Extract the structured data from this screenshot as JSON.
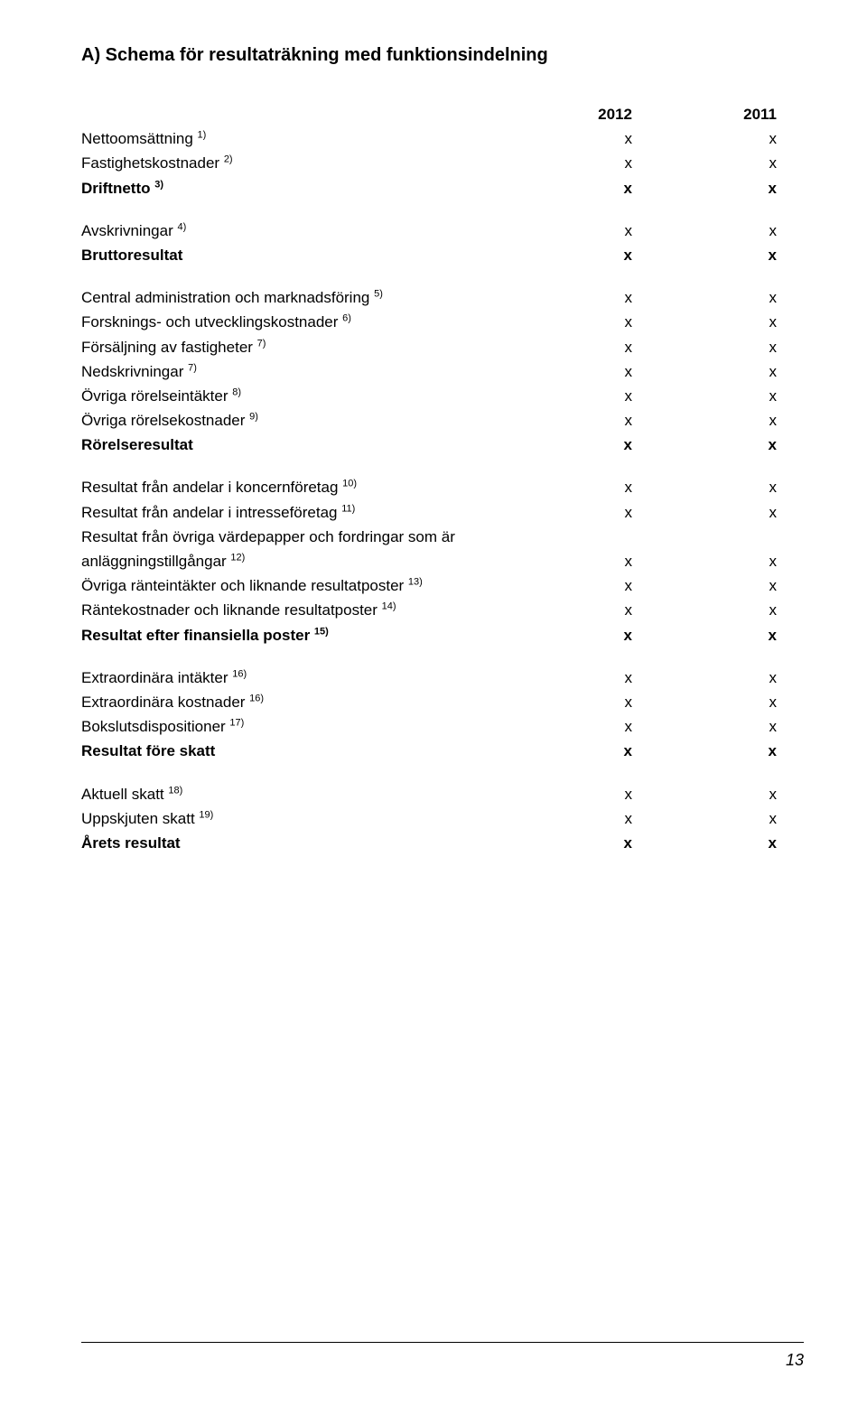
{
  "title": "A) Schema för resultaträkning med funktionsindelning",
  "headers": {
    "col1": "2012",
    "col2": "2011"
  },
  "mark": "x",
  "pageNumber": "13",
  "sections": [
    [
      {
        "label": "Nettoomsättning",
        "sup": "1)",
        "bold": false
      },
      {
        "label": "Fastighetskostnader",
        "sup": "2)",
        "bold": false
      },
      {
        "label": "Driftnetto",
        "sup": "3)",
        "bold": true
      }
    ],
    [
      {
        "label": "Avskrivningar",
        "sup": "4)",
        "bold": false
      },
      {
        "label": "Bruttoresultat",
        "sup": "",
        "bold": true
      }
    ],
    [
      {
        "label": "Central administration och marknadsföring",
        "sup": "5)",
        "bold": false
      },
      {
        "label": "Forsknings- och utvecklingskostnader",
        "sup": "6)",
        "bold": false
      },
      {
        "label": "Försäljning av fastigheter",
        "sup": "7)",
        "bold": false
      },
      {
        "label": "Nedskrivningar",
        "sup": "7)",
        "bold": false
      },
      {
        "label": "Övriga rörelseintäkter",
        "sup": "8)",
        "bold": false
      },
      {
        "label": "Övriga rörelsekostnader",
        "sup": "9)",
        "bold": false
      },
      {
        "label": "Rörelseresultat",
        "sup": "",
        "bold": true
      }
    ],
    [
      {
        "label": "Resultat från andelar i koncernföretag",
        "sup": "10)",
        "bold": false
      },
      {
        "label": "Resultat från andelar i intresseföretag",
        "sup": "11)",
        "bold": false
      },
      {
        "label": "Resultat från övriga värdepapper och fordringar som är",
        "sup": "",
        "bold": false,
        "noMark": true
      },
      {
        "label": "anläggningstillgångar",
        "sup": "12)",
        "bold": false
      },
      {
        "label": "Övriga ränteintäkter och liknande resultatposter",
        "sup": "13)",
        "bold": false
      },
      {
        "label": "Räntekostnader och liknande resultatposter",
        "sup": "14)",
        "bold": false
      },
      {
        "label": "Resultat efter finansiella poster",
        "sup": "15)",
        "bold": true
      }
    ],
    [
      {
        "label": "Extraordinära intäkter",
        "sup": "16)",
        "bold": false
      },
      {
        "label": "Extraordinära kostnader",
        "sup": "16)",
        "bold": false
      },
      {
        "label": "Bokslutsdispositioner",
        "sup": "17)",
        "bold": false
      },
      {
        "label": "Resultat före skatt",
        "sup": "",
        "bold": true
      }
    ],
    [
      {
        "label": "Aktuell skatt",
        "sup": "18)",
        "bold": false
      },
      {
        "label": "Uppskjuten skatt",
        "sup": "19)",
        "bold": false
      },
      {
        "label": "Årets resultat",
        "sup": "",
        "bold": true
      }
    ]
  ]
}
